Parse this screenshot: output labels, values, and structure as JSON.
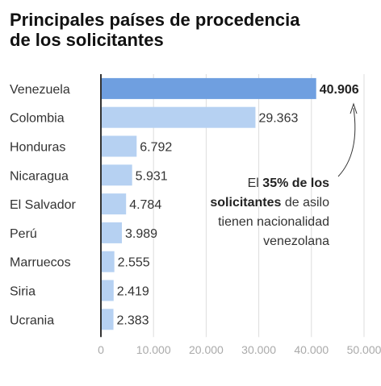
{
  "title_line1": "Principales países de procedencia",
  "title_line2": "de los solicitantes",
  "annotation": {
    "prefix": "El ",
    "bold": "35% de los solicitantes",
    "suffix": " de asilo tienen nacionalidad venezolana"
  },
  "colors": {
    "highlight": "#6f9fe0",
    "bar": "#b6d1f2",
    "grid": "#dddddd",
    "axis": "#333333"
  },
  "chart_data": {
    "type": "bar",
    "orientation": "horizontal",
    "categories": [
      "Venezuela",
      "Colombia",
      "Honduras",
      "Nicaragua",
      "El Salvador",
      "Perú",
      "Marruecos",
      "Siria",
      "Ucrania"
    ],
    "values": [
      40906,
      29363,
      6792,
      5931,
      4784,
      3989,
      2555,
      2419,
      2383
    ],
    "value_labels": [
      "40.906",
      "29.363",
      "6.792",
      "5.931",
      "4.784",
      "3.989",
      "2.555",
      "2.419",
      "2.383"
    ],
    "xlim": [
      0,
      50000
    ],
    "xticks": [
      0,
      10000,
      20000,
      30000,
      40000,
      50000
    ],
    "xtick_labels": [
      "0",
      "10.000",
      "20.000",
      "30.000",
      "40.000",
      "50.000"
    ],
    "grid": true,
    "highlight_index": 0
  }
}
